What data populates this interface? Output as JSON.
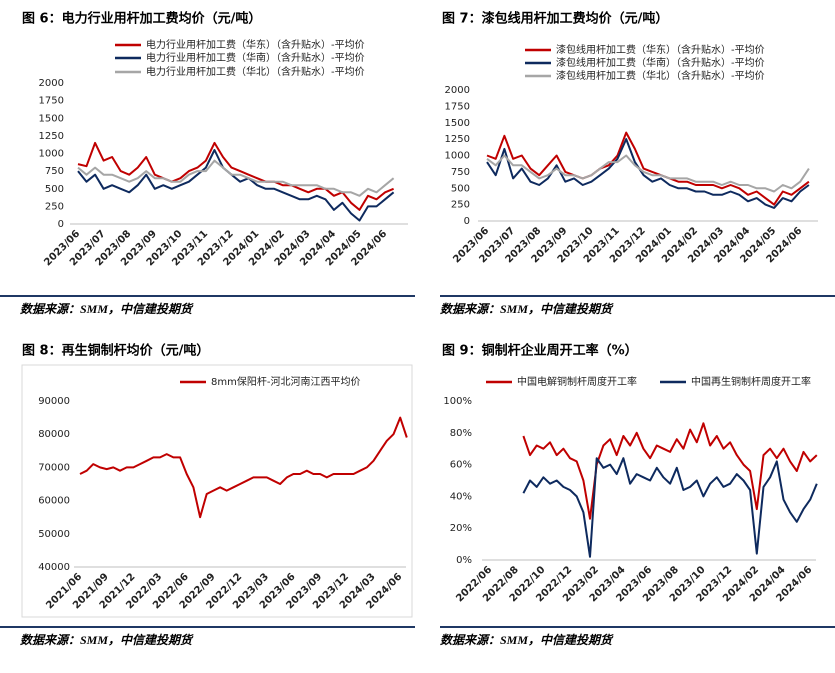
{
  "chart_data": [
    {
      "type": "line",
      "title": "图 6：电力行业用杆加工费均价（元/吨）",
      "source": "数据来源：SMM，中信建投期货",
      "categories": [
        "2023/06",
        null,
        null,
        "2023/07",
        null,
        null,
        "2023/08",
        null,
        null,
        "2023/09",
        null,
        null,
        "2023/10",
        null,
        null,
        "2023/11",
        null,
        null,
        "2023/12",
        null,
        null,
        "2024/01",
        null,
        null,
        "2024/02",
        null,
        null,
        "2024/03",
        null,
        null,
        "2024/04",
        null,
        null,
        "2024/05",
        null,
        null,
        "2024/06",
        null
      ],
      "ylim": [
        0,
        2000
      ],
      "yticks": [
        0,
        250,
        500,
        750,
        1000,
        1250,
        1500,
        1750,
        2000
      ],
      "grid": false,
      "legend": "top",
      "series": [
        {
          "name": "电力行业用杆加工费（华东）（含升贴水）-平均价",
          "color": "#c00000",
          "values": [
            850,
            820,
            1150,
            900,
            950,
            750,
            700,
            800,
            950,
            700,
            650,
            600,
            650,
            750,
            800,
            900,
            1150,
            950,
            800,
            750,
            700,
            650,
            600,
            600,
            550,
            550,
            500,
            450,
            500,
            500,
            400,
            450,
            300,
            200,
            400,
            350,
            450,
            500
          ]
        },
        {
          "name": "电力行业用杆加工费（华南）（含升贴水）-平均价",
          "color": "#0e2a5e",
          "values": [
            750,
            600,
            700,
            500,
            550,
            500,
            450,
            550,
            700,
            500,
            550,
            500,
            550,
            600,
            700,
            800,
            1050,
            800,
            700,
            600,
            650,
            550,
            500,
            500,
            450,
            400,
            350,
            350,
            400,
            350,
            200,
            300,
            150,
            50,
            250,
            250,
            350,
            450
          ]
        },
        {
          "name": "电力行业用杆加工费（华北）（含升贴水）-平均价",
          "color": "#a6a6a6",
          "values": [
            800,
            700,
            800,
            700,
            700,
            650,
            600,
            650,
            750,
            650,
            650,
            600,
            600,
            700,
            750,
            750,
            900,
            800,
            700,
            700,
            650,
            600,
            600,
            600,
            600,
            550,
            550,
            550,
            550,
            500,
            500,
            450,
            450,
            400,
            500,
            450,
            550,
            650
          ]
        }
      ]
    },
    {
      "type": "line",
      "title": "图 7：漆包线用杆加工费均价（元/吨）",
      "source": "数据来源：SMM，中信建投期货",
      "categories": [
        "2023/06",
        null,
        null,
        "2023/07",
        null,
        null,
        "2023/08",
        null,
        null,
        "2023/09",
        null,
        null,
        "2023/10",
        null,
        null,
        "2023/11",
        null,
        null,
        "2023/12",
        null,
        null,
        "2024/01",
        null,
        null,
        "2024/02",
        null,
        null,
        "2024/03",
        null,
        null,
        "2024/04",
        null,
        null,
        "2024/05",
        null,
        null,
        "2024/06",
        null
      ],
      "ylim": [
        0,
        2000
      ],
      "yticks": [
        0,
        250,
        500,
        750,
        1000,
        1250,
        1500,
        1750,
        2000
      ],
      "grid": false,
      "legend": "top",
      "series": [
        {
          "name": "漆包线用杆加工费（华东）（含升贴水）-平均价",
          "color": "#c00000",
          "values": [
            1000,
            950,
            1300,
            950,
            1000,
            800,
            700,
            850,
            1000,
            750,
            700,
            650,
            700,
            800,
            850,
            1000,
            1350,
            1100,
            800,
            750,
            700,
            650,
            600,
            600,
            550,
            550,
            550,
            500,
            550,
            500,
            400,
            450,
            350,
            250,
            450,
            400,
            500,
            600
          ]
        },
        {
          "name": "漆包线用杆加工费（华南）（含升贴水）-平均价",
          "color": "#0e2a5e",
          "values": [
            900,
            700,
            1100,
            650,
            800,
            600,
            550,
            650,
            850,
            600,
            650,
            550,
            600,
            700,
            800,
            950,
            1250,
            900,
            700,
            600,
            650,
            550,
            500,
            500,
            450,
            450,
            400,
            400,
            450,
            400,
            300,
            350,
            250,
            200,
            350,
            300,
            450,
            550
          ]
        },
        {
          "name": "漆包线用杆加工费（华北）（含升贴水）-平均价",
          "color": "#a6a6a6",
          "values": [
            950,
            850,
            1000,
            850,
            850,
            750,
            650,
            700,
            800,
            700,
            700,
            650,
            700,
            800,
            900,
            900,
            1000,
            850,
            750,
            700,
            700,
            650,
            650,
            650,
            600,
            600,
            600,
            550,
            600,
            550,
            550,
            500,
            500,
            450,
            550,
            500,
            600,
            800
          ]
        }
      ]
    },
    {
      "type": "line",
      "title": "图 8：再生铜制杆均价（元/吨）",
      "source": "数据来源：SMM，中信建投期货",
      "categories": [
        "2021/06",
        null,
        null,
        null,
        "2021/09",
        null,
        null,
        null,
        "2021/12",
        null,
        null,
        null,
        "2022/03",
        null,
        null,
        null,
        "2022/06",
        null,
        null,
        null,
        "2022/09",
        null,
        null,
        null,
        "2022/12",
        null,
        null,
        null,
        "2023/03",
        null,
        null,
        null,
        "2023/06",
        null,
        null,
        null,
        "2023/09",
        null,
        null,
        null,
        "2023/12",
        null,
        null,
        null,
        "2024/03",
        null,
        null,
        null,
        "2024/06",
        null
      ],
      "ylim": [
        40000,
        90000
      ],
      "yticks": [
        40000,
        50000,
        60000,
        70000,
        80000,
        90000
      ],
      "grid": false,
      "legend": "top",
      "series": [
        {
          "name": "8mm保阳杆-河北河南江西平均价",
          "color": "#c00000",
          "values": [
            68000,
            69000,
            71000,
            70000,
            69500,
            70000,
            69000,
            70000,
            70000,
            71000,
            72000,
            73000,
            73000,
            74000,
            73000,
            73000,
            68000,
            64000,
            55000,
            62000,
            63000,
            64000,
            63000,
            64000,
            65000,
            66000,
            67000,
            67000,
            67000,
            66000,
            65000,
            67000,
            68000,
            68000,
            69000,
            68000,
            68000,
            67000,
            68000,
            68000,
            68000,
            68000,
            69000,
            70000,
            72000,
            75000,
            78000,
            80000,
            85000,
            79000
          ]
        }
      ]
    },
    {
      "type": "line",
      "title": "图 9：铜制杆企业周开工率（%）",
      "source": "数据来源：SMM，中信建投期货",
      "categories": [
        "2022/06",
        null,
        null,
        null,
        "2022/08",
        null,
        null,
        null,
        "2022/10",
        null,
        null,
        null,
        "2022/12",
        null,
        null,
        null,
        "2023/02",
        null,
        null,
        null,
        "2023/04",
        null,
        null,
        null,
        "2023/06",
        null,
        null,
        null,
        "2023/08",
        null,
        null,
        null,
        "2023/10",
        null,
        null,
        null,
        "2023/12",
        null,
        null,
        null,
        "2024/02",
        null,
        null,
        null,
        "2024/04",
        null,
        null,
        null,
        "2024/06",
        null
      ],
      "ylim": [
        0,
        100
      ],
      "yticks": [
        {
          "value": 0,
          "label": "0%"
        },
        {
          "value": 20,
          "label": "20%"
        },
        {
          "value": 40,
          "label": "40%"
        },
        {
          "value": 60,
          "label": "60%"
        },
        {
          "value": 80,
          "label": "80%"
        },
        {
          "value": 100,
          "label": "100%"
        }
      ],
      "grid": false,
      "legend": "top",
      "series": [
        {
          "name": "中国电解铜制杆周度开工率",
          "color": "#c00000",
          "values": [
            null,
            null,
            null,
            null,
            null,
            78,
            66,
            72,
            70,
            74,
            66,
            70,
            64,
            62,
            50,
            26,
            60,
            72,
            76,
            66,
            78,
            72,
            80,
            70,
            64,
            72,
            70,
            68,
            76,
            70,
            82,
            74,
            86,
            72,
            78,
            70,
            74,
            66,
            60,
            56,
            32,
            66,
            70,
            64,
            70,
            62,
            56,
            68,
            62,
            66
          ]
        },
        {
          "name": "中国再生铜制杆周度开工率",
          "color": "#0e2a5e",
          "values": [
            null,
            null,
            null,
            null,
            null,
            42,
            50,
            46,
            52,
            48,
            50,
            46,
            44,
            40,
            30,
            2,
            64,
            58,
            60,
            54,
            64,
            48,
            54,
            52,
            50,
            58,
            52,
            48,
            58,
            44,
            46,
            50,
            40,
            48,
            52,
            46,
            48,
            54,
            50,
            44,
            4,
            46,
            52,
            62,
            38,
            30,
            24,
            32,
            38,
            48
          ]
        }
      ]
    }
  ]
}
